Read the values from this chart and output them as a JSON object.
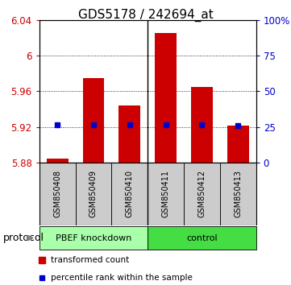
{
  "title": "GDS5178 / 242694_at",
  "samples": [
    "GSM850408",
    "GSM850409",
    "GSM850410",
    "GSM850411",
    "GSM850412",
    "GSM850413"
  ],
  "red_values": [
    5.884,
    5.975,
    5.944,
    6.025,
    5.965,
    5.921
  ],
  "blue_values": [
    5.922,
    5.922,
    5.922,
    5.922,
    5.922,
    5.921
  ],
  "ylim_min": 5.88,
  "ylim_max": 6.04,
  "yticks": [
    5.88,
    5.92,
    5.96,
    6.0,
    6.04
  ],
  "ytick_labels": [
    "5.88",
    "5.92",
    "5.96",
    "6",
    "6.04"
  ],
  "right_ytick_percentiles": [
    0,
    25,
    50,
    75,
    100
  ],
  "right_ytick_labels": [
    "0",
    "25",
    "50",
    "75",
    "100%"
  ],
  "bar_color": "#cc0000",
  "dot_color": "#0000cc",
  "bar_width": 0.6,
  "group1_label": "PBEF knockdown",
  "group2_label": "control",
  "group1_color": "#aaffaa",
  "group2_color": "#44dd44",
  "protocol_label": "protocol",
  "legend_red": "transformed count",
  "legend_blue": "percentile rank within the sample",
  "sample_area_color": "#cccccc",
  "grid_lines": [
    5.92,
    5.96,
    6.0
  ],
  "n_group1": 3,
  "n_group2": 3
}
